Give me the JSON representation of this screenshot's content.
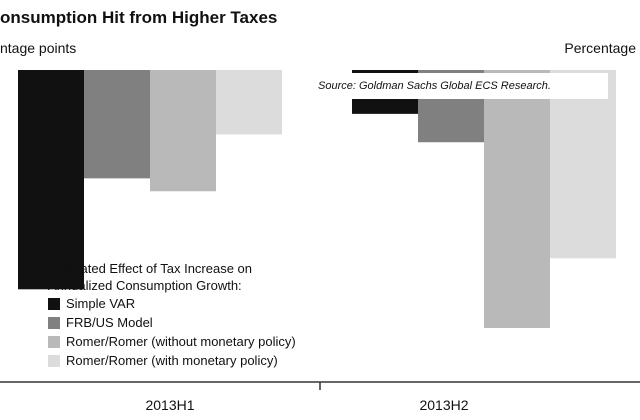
{
  "chart_data": {
    "type": "bar",
    "title": "onsumption Hit from Higher Taxes",
    "ylabel_left": "ntage points",
    "ylabel_right": "Percentage",
    "source": "Source: Goldman Sachs Global ECS Research.",
    "categories": [
      "2013H1",
      "2013H2"
    ],
    "legend_title": [
      "Estimated Effect of Tax Increase on",
      "Annualized Consumption Growth:"
    ],
    "series": [
      {
        "name": "Simple VAR",
        "color": "#111111",
        "values": [
          -0.85,
          -0.17
        ]
      },
      {
        "name": "FRB/US Model",
        "color": "#808080",
        "values": [
          -0.42,
          -0.28
        ]
      },
      {
        "name": "Romer/Romer (without monetary policy)",
        "color": "#b9b9b9",
        "values": [
          -0.47,
          -1.0
        ]
      },
      {
        "name": "Romer/Romer (with monetary policy)",
        "color": "#dcdcdc",
        "values": [
          -0.25,
          -0.73
        ]
      }
    ],
    "ylim": [
      -1.0,
      0
    ],
    "legend_position": "bottom-left",
    "grid": false
  }
}
